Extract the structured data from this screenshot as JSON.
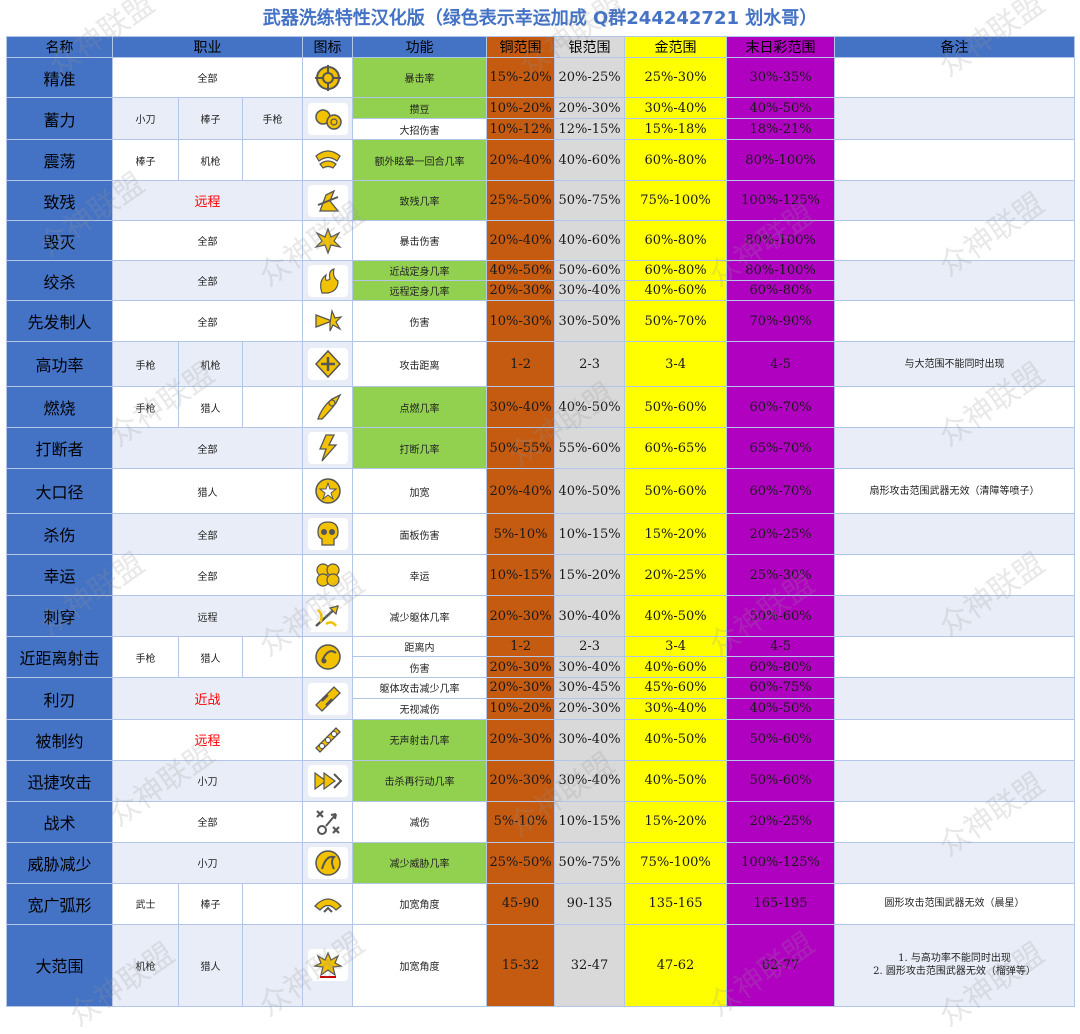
{
  "title": "武器洗练特性汉化版（绿色表示幸运加成 Q群244242721 划水哥）",
  "headers": {
    "name": "名称",
    "weapon": "职业",
    "icon": "图标",
    "function": "功能",
    "copper": "铜范围",
    "silver": "银范围",
    "gold": "金范围",
    "doom": "末日彩范围",
    "remark": "备注"
  },
  "watermark": "众神联盟",
  "colors": {
    "blue": "#4472c4",
    "green": "#92d050",
    "copper": "#c55a11",
    "silver": "#d9d9d9",
    "gold": "#ffff00",
    "doom": "#b000c0",
    "title": "#4472c4",
    "red": "#ff0000"
  },
  "rows": [
    {
      "name": "精准",
      "weapons": [
        "全部"
      ],
      "icon": "crosshair-icon",
      "funcs": [
        {
          "text": "暴击率",
          "green": true,
          "cu": "15%-20%",
          "ag": "20%-25%",
          "au": "25%-30%",
          "ms": "30%-35%"
        }
      ],
      "remark": ""
    },
    {
      "name": "蓄力",
      "weapons": [
        "小刀",
        "棒子",
        "手枪"
      ],
      "icon": "orbs-icon",
      "funcs": [
        {
          "text": "攒豆",
          "green": true,
          "cu": "10%-20%",
          "ag": "20%-30%",
          "au": "30%-40%",
          "ms": "40%-50%"
        },
        {
          "text": "大招伤害",
          "green": false,
          "cu": "10%-12%",
          "ag": "12%-15%",
          "au": "15%-18%",
          "ms": "18%-21%"
        }
      ],
      "remark": ""
    },
    {
      "name": "震荡",
      "weapons": [
        "棒子",
        "机枪"
      ],
      "icon": "shockwave-icon",
      "funcs": [
        {
          "text": "额外眩晕一回合几率",
          "green": true,
          "cu": "20%-40%",
          "ag": "40%-60%",
          "au": "60%-80%",
          "ms": "80%-100%"
        }
      ],
      "remark": ""
    },
    {
      "name": "致残",
      "weapons": [
        "远程"
      ],
      "weaponRed": true,
      "icon": "cripple-icon",
      "funcs": [
        {
          "text": "致残几率",
          "green": true,
          "cu": "25%-50%",
          "ag": "50%-75%",
          "au": "75%-100%",
          "ms": "100%-125%"
        }
      ],
      "remark": ""
    },
    {
      "name": "毁灭",
      "weapons": [
        "全部"
      ],
      "icon": "burst-icon",
      "funcs": [
        {
          "text": "暴击伤害",
          "green": false,
          "cu": "20%-40%",
          "ag": "40%-60%",
          "au": "60%-80%",
          "ms": "80%-100%"
        }
      ],
      "remark": ""
    },
    {
      "name": "绞杀",
      "weapons": [
        "全部"
      ],
      "icon": "strangle-icon",
      "funcs": [
        {
          "text": "近战定身几率",
          "green": true,
          "cu": "40%-50%",
          "ag": "50%-60%",
          "au": "60%-80%",
          "ms": "80%-100%"
        },
        {
          "text": "远程定身几率",
          "green": true,
          "cu": "20%-30%",
          "ag": "30%-40%",
          "au": "40%-60%",
          "ms": "60%-80%"
        }
      ],
      "remark": ""
    },
    {
      "name": "先发制人",
      "weapons": [
        "全部"
      ],
      "icon": "preempt-icon",
      "funcs": [
        {
          "text": "伤害",
          "green": false,
          "cu": "10%-30%",
          "ag": "30%-50%",
          "au": "50%-70%",
          "ms": "70%-90%"
        }
      ],
      "remark": ""
    },
    {
      "name": "高功率",
      "weapons": [
        "手枪",
        "机枪"
      ],
      "icon": "range-icon",
      "funcs": [
        {
          "text": "攻击距离",
          "green": false,
          "cu": "1-2",
          "ag": "2-3",
          "au": "3-4",
          "ms": "4-5"
        }
      ],
      "remark": "与大范围不能同时出现"
    },
    {
      "name": "燃烧",
      "weapons": [
        "手枪",
        "猎人"
      ],
      "icon": "flame-icon",
      "funcs": [
        {
          "text": "点燃几率",
          "green": true,
          "cu": "30%-40%",
          "ag": "40%-50%",
          "au": "50%-60%",
          "ms": "60%-70%"
        }
      ],
      "remark": ""
    },
    {
      "name": "打断者",
      "weapons": [
        "全部"
      ],
      "icon": "interrupt-icon",
      "funcs": [
        {
          "text": "打断几率",
          "green": true,
          "cu": "50%-55%",
          "ag": "55%-60%",
          "au": "60%-65%",
          "ms": "65%-70%"
        }
      ],
      "remark": ""
    },
    {
      "name": "大口径",
      "weapons": [
        "猎人"
      ],
      "icon": "caliber-icon",
      "funcs": [
        {
          "text": "加宽",
          "green": false,
          "cu": "20%-40%",
          "ag": "40%-50%",
          "au": "50%-60%",
          "ms": "60%-70%"
        }
      ],
      "remark": "扇形攻击范围武器无效（清障等喷子）"
    },
    {
      "name": "杀伤",
      "weapons": [
        "全部"
      ],
      "icon": "skull-icon",
      "funcs": [
        {
          "text": "面板伤害",
          "green": false,
          "cu": "5%-10%",
          "ag": "10%-15%",
          "au": "15%-20%",
          "ms": "20%-25%"
        }
      ],
      "remark": ""
    },
    {
      "name": "幸运",
      "weapons": [
        "全部"
      ],
      "icon": "clover-icon",
      "funcs": [
        {
          "text": "幸运",
          "green": false,
          "cu": "10%-15%",
          "ag": "15%-20%",
          "au": "20%-25%",
          "ms": "25%-30%"
        }
      ],
      "remark": ""
    },
    {
      "name": "刺穿",
      "weapons": [
        "远程"
      ],
      "icon": "pierce-icon",
      "funcs": [
        {
          "text": "减少躯体几率",
          "green": false,
          "cu": "20%-30%",
          "ag": "30%-40%",
          "au": "40%-50%",
          "ms": "50%-60%"
        }
      ],
      "remark": ""
    },
    {
      "name": "近距离射击",
      "weapons": [
        "手枪",
        "猎人"
      ],
      "icon": "closeshot-icon",
      "funcs": [
        {
          "text": "距离内",
          "green": false,
          "cu": "1-2",
          "ag": "2-3",
          "au": "3-4",
          "ms": "4-5"
        },
        {
          "text": "伤害",
          "green": false,
          "cu": "20%-30%",
          "ag": "30%-40%",
          "au": "40%-60%",
          "ms": "60%-80%"
        }
      ],
      "remark": ""
    },
    {
      "name": "利刃",
      "weapons": [
        "近战"
      ],
      "weaponRed": true,
      "icon": "blade-icon",
      "funcs": [
        {
          "text": "躯体攻击减少几率",
          "green": false,
          "cu": "20%-30%",
          "ag": "30%-45%",
          "au": "45%-60%",
          "ms": "60%-75%"
        },
        {
          "text": "无视减伤",
          "green": false,
          "cu": "10%-20%",
          "ag": "20%-30%",
          "au": "30%-40%",
          "ms": "40%-50%"
        }
      ],
      "remark": ""
    },
    {
      "name": "被制约",
      "weapons": [
        "远程"
      ],
      "weaponRed": true,
      "icon": "silencer-icon",
      "funcs": [
        {
          "text": "无声射击几率",
          "green": true,
          "cu": "20%-30%",
          "ag": "30%-40%",
          "au": "40%-50%",
          "ms": "50%-60%"
        }
      ],
      "remark": ""
    },
    {
      "name": "迅捷攻击",
      "weapons": [
        "小刀"
      ],
      "icon": "swift-icon",
      "funcs": [
        {
          "text": "击杀再行动几率",
          "green": true,
          "cu": "20%-30%",
          "ag": "30%-40%",
          "au": "40%-50%",
          "ms": "50%-60%"
        }
      ],
      "remark": ""
    },
    {
      "name": "战术",
      "weapons": [
        "全部"
      ],
      "icon": "tactics-icon",
      "funcs": [
        {
          "text": "减伤",
          "green": false,
          "cu": "5%-10%",
          "ag": "10%-15%",
          "au": "15%-20%",
          "ms": "20%-25%"
        }
      ],
      "remark": ""
    },
    {
      "name": "威胁减少",
      "weapons": [
        "小刀"
      ],
      "icon": "threat-icon",
      "funcs": [
        {
          "text": "减少威胁几率",
          "green": true,
          "cu": "25%-50%",
          "ag": "50%-75%",
          "au": "75%-100%",
          "ms": "100%-125%"
        }
      ],
      "remark": ""
    },
    {
      "name": "宽广弧形",
      "weapons": [
        "武士",
        "棒子"
      ],
      "icon": "arc-icon",
      "funcs": [
        {
          "text": "加宽角度",
          "green": false,
          "cu": "45-90",
          "ag": "90-135",
          "au": "135-165",
          "ms": "165-195"
        }
      ],
      "remark": "圆形攻击范围武器无效（晨星）"
    },
    {
      "name": "大范围",
      "weapons": [
        "机枪",
        "猎人"
      ],
      "icon": "area-icon",
      "funcs": [
        {
          "text": "加宽角度",
          "green": false,
          "cu": "15-32",
          "ag": "32-47",
          "au": "47-62",
          "ms": "62-77"
        }
      ],
      "remark": "1. 与高功率不能同时出现\n2. 圆形攻击范围武器无效（榴弹等）"
    }
  ]
}
